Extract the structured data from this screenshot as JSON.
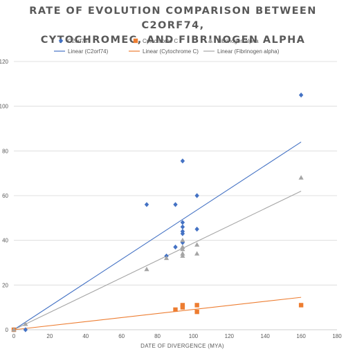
{
  "chart_data": {
    "type": "scatter",
    "title_lines": [
      "RATE OF EVOLUTION COMPARISON BETWEEN C2ORF74,",
      "CYTOCHROMEC, AND FIBRINOGEN ALPHA"
    ],
    "xlabel": "DATE OF DIVERGENCE (MYA)",
    "ylabel": "",
    "xlim": [
      0,
      180
    ],
    "ylim": [
      0,
      120
    ],
    "xticks": [
      "0",
      "20",
      "40",
      "60",
      "80",
      "100",
      "120",
      "140",
      "160",
      "180"
    ],
    "yticks": [
      "0",
      "20",
      "40",
      "60",
      "80",
      "100",
      "120"
    ],
    "grid": "horizontal",
    "legend_position": "top",
    "series": [
      {
        "name": "C2orf74",
        "marker": "diamond",
        "color": "#4472c4",
        "points": [
          [
            0,
            0
          ],
          [
            6.5,
            0
          ],
          [
            74,
            56
          ],
          [
            85,
            33
          ],
          [
            90,
            37
          ],
          [
            90,
            56
          ],
          [
            94,
            75.5
          ],
          [
            94,
            48
          ],
          [
            94,
            46
          ],
          [
            94,
            44
          ],
          [
            94,
            43
          ],
          [
            94,
            39
          ],
          [
            102,
            60
          ],
          [
            102,
            45
          ],
          [
            160,
            105
          ]
        ],
        "trend_name": "Linear (C2orf74)",
        "trend": [
          [
            0,
            0
          ],
          [
            160,
            84
          ]
        ]
      },
      {
        "name": "Cytochrome C",
        "marker": "square",
        "color": "#ed7d31",
        "points": [
          [
            0,
            0
          ],
          [
            90,
            9
          ],
          [
            94,
            11
          ],
          [
            94,
            10
          ],
          [
            102,
            11
          ],
          [
            102,
            8
          ],
          [
            160,
            11
          ]
        ],
        "trend_name": "Linear (Cytochrome C)",
        "trend": [
          [
            0,
            0
          ],
          [
            160,
            14.5
          ]
        ]
      },
      {
        "name": "Fibrinogen alpha",
        "marker": "triangle",
        "color": "#a5a5a5",
        "points": [
          [
            0,
            0
          ],
          [
            6.5,
            2.5
          ],
          [
            74,
            27
          ],
          [
            85,
            32
          ],
          [
            94,
            40
          ],
          [
            94,
            37
          ],
          [
            94,
            36
          ],
          [
            94,
            34
          ],
          [
            94,
            33
          ],
          [
            102,
            38
          ],
          [
            102,
            34
          ],
          [
            160,
            68
          ]
        ],
        "trend_name": "Linear (Fibrinogen alpha)",
        "trend": [
          [
            0,
            0
          ],
          [
            160,
            62
          ]
        ]
      }
    ]
  }
}
